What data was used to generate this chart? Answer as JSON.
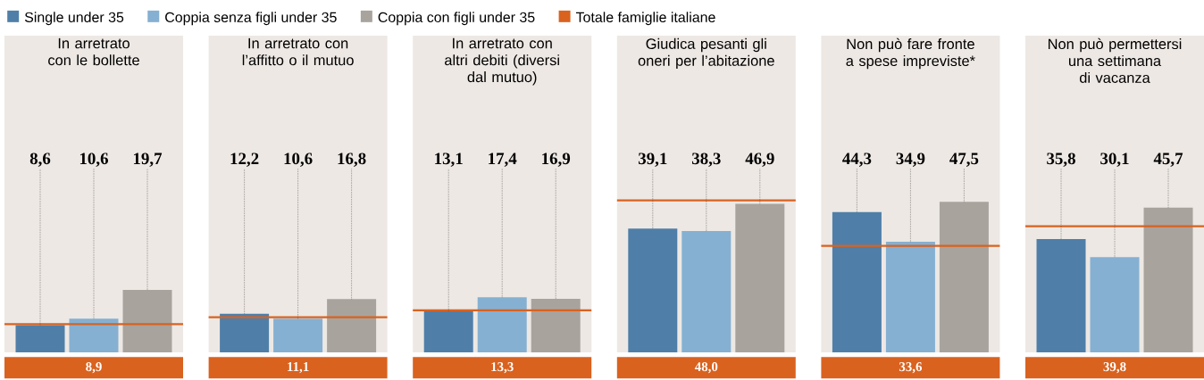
{
  "chart_data": [
    {
      "type": "bar",
      "title": "In arretrato con le bollette",
      "categories": [
        null
      ],
      "ylim": [
        0,
        100
      ],
      "tick_labels": false,
      "legend": "top",
      "annotations": [
        "8,9",
        "Totale famiglie italiane"
      ],
      "series": [
        {
          "name": "Single under 35",
          "color": "#4f7fa8",
          "values": [
            8.6
          ],
          "value_labels": [
            "8,6"
          ]
        },
        {
          "name": "Coppia senza figli under 35",
          "color": "#85b0d2",
          "values": [
            10.6
          ],
          "value_labels": [
            "10,6"
          ]
        },
        {
          "name": "Coppia con figli under 35",
          "color": "#a9a39d",
          "values": [
            19.7
          ],
          "value_labels": [
            "19,7"
          ]
        }
      ],
      "ref_lines": [
        {
          "axis": "y",
          "value": 8.9,
          "color": "#d9621f"
        }
      ]
    },
    {
      "type": "bar",
      "title": "In arretrato con l’affitto o il mutuo",
      "categories": [
        null
      ],
      "ylim": [
        0,
        100
      ],
      "tick_labels": false,
      "annotations": [
        "11,1"
      ],
      "series": [
        {
          "color": "#4f7fa8",
          "values": [
            12.2
          ],
          "value_labels": [
            "12,2"
          ]
        },
        {
          "color": "#85b0d2",
          "values": [
            10.6
          ],
          "value_labels": [
            "10,6"
          ]
        },
        {
          "color": "#a9a39d",
          "values": [
            16.8
          ],
          "value_labels": [
            "16,8"
          ]
        }
      ],
      "ref_lines": [
        {
          "axis": "y",
          "value": 11.1,
          "color": "#d9621f"
        }
      ]
    },
    {
      "type": "bar",
      "title": "In arretrato con altri debiti (diversi dal mutuo)",
      "categories": [
        null
      ],
      "ylim": [
        0,
        100
      ],
      "tick_labels": false,
      "annotations": [
        "13,3"
      ],
      "series": [
        {
          "color": "#4f7fa8",
          "values": [
            13.1
          ],
          "value_labels": [
            "13,1"
          ]
        },
        {
          "color": "#85b0d2",
          "values": [
            17.4
          ],
          "value_labels": [
            "17,4"
          ]
        },
        {
          "color": "#a9a39d",
          "values": [
            16.9
          ],
          "value_labels": [
            "16,9"
          ]
        }
      ],
      "ref_lines": [
        {
          "axis": "y",
          "value": 13.3,
          "color": "#d9621f"
        }
      ]
    },
    {
      "type": "bar",
      "title": "Giudica pesanti gli oneri per l’abitazione",
      "categories": [
        null
      ],
      "ylim": [
        0,
        100
      ],
      "tick_labels": false,
      "annotations": [
        "48,0"
      ],
      "series": [
        {
          "color": "#4f7fa8",
          "values": [
            39.1
          ],
          "value_labels": [
            "39,1"
          ]
        },
        {
          "color": "#85b0d2",
          "values": [
            38.3
          ],
          "value_labels": [
            "38,3"
          ]
        },
        {
          "color": "#a9a39d",
          "values": [
            46.9
          ],
          "value_labels": [
            "46,9"
          ]
        }
      ],
      "ref_lines": [
        {
          "axis": "y",
          "value": 48.0,
          "color": "#d9621f"
        }
      ]
    },
    {
      "type": "bar",
      "title": "Non può fare fronte a spese impreviste*",
      "categories": [
        null
      ],
      "ylim": [
        0,
        100
      ],
      "tick_labels": false,
      "annotations": [
        "33,6"
      ],
      "series": [
        {
          "color": "#4f7fa8",
          "values": [
            44.3
          ],
          "value_labels": [
            "44,3"
          ]
        },
        {
          "color": "#85b0d2",
          "values": [
            34.9
          ],
          "value_labels": [
            "34,9"
          ]
        },
        {
          "color": "#a9a39d",
          "values": [
            47.5
          ],
          "value_labels": [
            "47,5"
          ]
        }
      ],
      "ref_lines": [
        {
          "axis": "y",
          "value": 33.6,
          "color": "#d9621f"
        }
      ]
    },
    {
      "type": "bar",
      "title": "Non può permettersi una settimana di vacanza",
      "categories": [
        null
      ],
      "ylim": [
        0,
        100
      ],
      "tick_labels": false,
      "annotations": [
        "39,8"
      ],
      "series": [
        {
          "color": "#4f7fa8",
          "values": [
            35.8
          ],
          "value_labels": [
            "35,8"
          ]
        },
        {
          "color": "#85b0d2",
          "values": [
            30.1
          ],
          "value_labels": [
            "30,1"
          ]
        },
        {
          "color": "#a9a39d",
          "values": [
            45.7
          ],
          "value_labels": [
            "45,7"
          ]
        }
      ],
      "ref_lines": [
        {
          "axis": "y",
          "value": 39.8,
          "color": "#d9621f"
        }
      ]
    }
  ]
}
